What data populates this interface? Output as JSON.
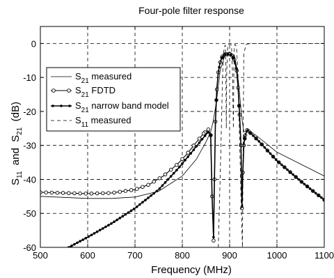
{
  "chart_data": {
    "type": "line",
    "title": "Four-pole filter response",
    "xlabel": "Frequency  (MHz)",
    "ylabel": {
      "p1": "S",
      "s1": "11",
      "p2": "  and  S",
      "s2": "21",
      "p3": "  (dB)"
    },
    "xlim": [
      500,
      1100
    ],
    "ylim": [
      -60,
      5
    ],
    "xticks": [
      500,
      600,
      700,
      800,
      900,
      1000,
      1100
    ],
    "yticks": [
      0,
      -10,
      -20,
      -30,
      -40,
      -50,
      -60
    ],
    "grid": true,
    "legend_position": "left",
    "series": [
      {
        "name": {
          "main": "S",
          "sub": "21",
          "rest": " measured"
        },
        "style": "thin-solid",
        "x": [
          500,
          550,
          600,
          650,
          700,
          750,
          800,
          830,
          850,
          860,
          865,
          870,
          875,
          880,
          890,
          900,
          910,
          915,
          920,
          925,
          930,
          935,
          940,
          960,
          1000,
          1050,
          1100
        ],
        "y": [
          -45,
          -45.3,
          -45.6,
          -45.6,
          -45.2,
          -43.5,
          -39,
          -34,
          -29,
          -26,
          -23,
          -19,
          -14,
          -8,
          -3.5,
          -2.5,
          -3.5,
          -7,
          -13,
          -21,
          -26,
          -25.8,
          -25.5,
          -27.5,
          -32,
          -35.5,
          -39
        ]
      },
      {
        "name": {
          "main": "S",
          "sub": "21",
          "rest": " FDTD"
        },
        "style": "solid-circle-markers",
        "x": [
          500,
          550,
          600,
          650,
          700,
          730,
          760,
          790,
          810,
          830,
          845,
          855,
          860,
          863,
          866,
          868,
          870,
          873,
          876,
          880,
          885,
          890,
          895,
          900,
          905,
          910,
          915,
          918,
          921,
          924,
          926,
          928,
          930,
          933,
          937,
          940,
          945,
          960,
          980,
          1000,
          1025,
          1050,
          1075,
          1100
        ],
        "y": [
          -43.8,
          -44,
          -44.2,
          -44,
          -43,
          -41.5,
          -39,
          -35.5,
          -32.5,
          -29,
          -26.5,
          -25.3,
          -27,
          -45,
          -58,
          -40,
          -23,
          -13.5,
          -8.5,
          -5.5,
          -3.8,
          -3.2,
          -3.1,
          -3.2,
          -3.6,
          -4.8,
          -8,
          -13,
          -21,
          -30,
          -48.5,
          -38,
          -30,
          -27,
          -25.5,
          -25.8,
          -26.5,
          -28.5,
          -31.5,
          -34.5,
          -37.5,
          -40.5,
          -43.3,
          -46
        ]
      },
      {
        "name": {
          "main": "S",
          "sub": "21",
          "rest": " narrow band model"
        },
        "style": "solid-dot-markers",
        "x": [
          560,
          600,
          650,
          700,
          750,
          790,
          820,
          840,
          855,
          860,
          863,
          866,
          868,
          870,
          873,
          876,
          880,
          885,
          890,
          895,
          900,
          905,
          910,
          915,
          918,
          921,
          924,
          926,
          928,
          930,
          933,
          937,
          940,
          945,
          960,
          980,
          1000,
          1025,
          1050,
          1075,
          1100
        ],
        "y": [
          -60,
          -57,
          -53,
          -48.5,
          -43,
          -37,
          -32,
          -28.5,
          -26,
          -27,
          -45,
          -57,
          -40,
          -23,
          -13.5,
          -8.5,
          -5.5,
          -3.8,
          -3.2,
          -3.1,
          -3.2,
          -3.6,
          -4.8,
          -8,
          -13,
          -21,
          -30,
          -48,
          -38,
          -30,
          -27,
          -25.5,
          -25.8,
          -26.5,
          -28.5,
          -31.5,
          -34.5,
          -37.5,
          -40.5,
          -43.3,
          -46
        ]
      },
      {
        "name": {
          "main": "S",
          "sub": "11",
          "rest": " measured"
        },
        "style": "dashed",
        "x": [
          876,
          879,
          882,
          885,
          887,
          889,
          891,
          892,
          893,
          894,
          896,
          898,
          900,
          902,
          904,
          906,
          908,
          909,
          910,
          911,
          913,
          915,
          918,
          921,
          924,
          927,
          930,
          935,
          950,
          1000,
          1050,
          1100
        ],
        "y": [
          -60,
          -45,
          -28,
          -10,
          -3,
          -1,
          -0.5,
          -8,
          -25,
          -8,
          -0.6,
          -0.3,
          -0.3,
          -0.3,
          -0.6,
          -8,
          -25,
          -8,
          -0.6,
          -0.3,
          -0.5,
          -2,
          -10,
          -28,
          -45,
          -60,
          -3,
          -0.2,
          0,
          0,
          0,
          0
        ]
      }
    ]
  }
}
